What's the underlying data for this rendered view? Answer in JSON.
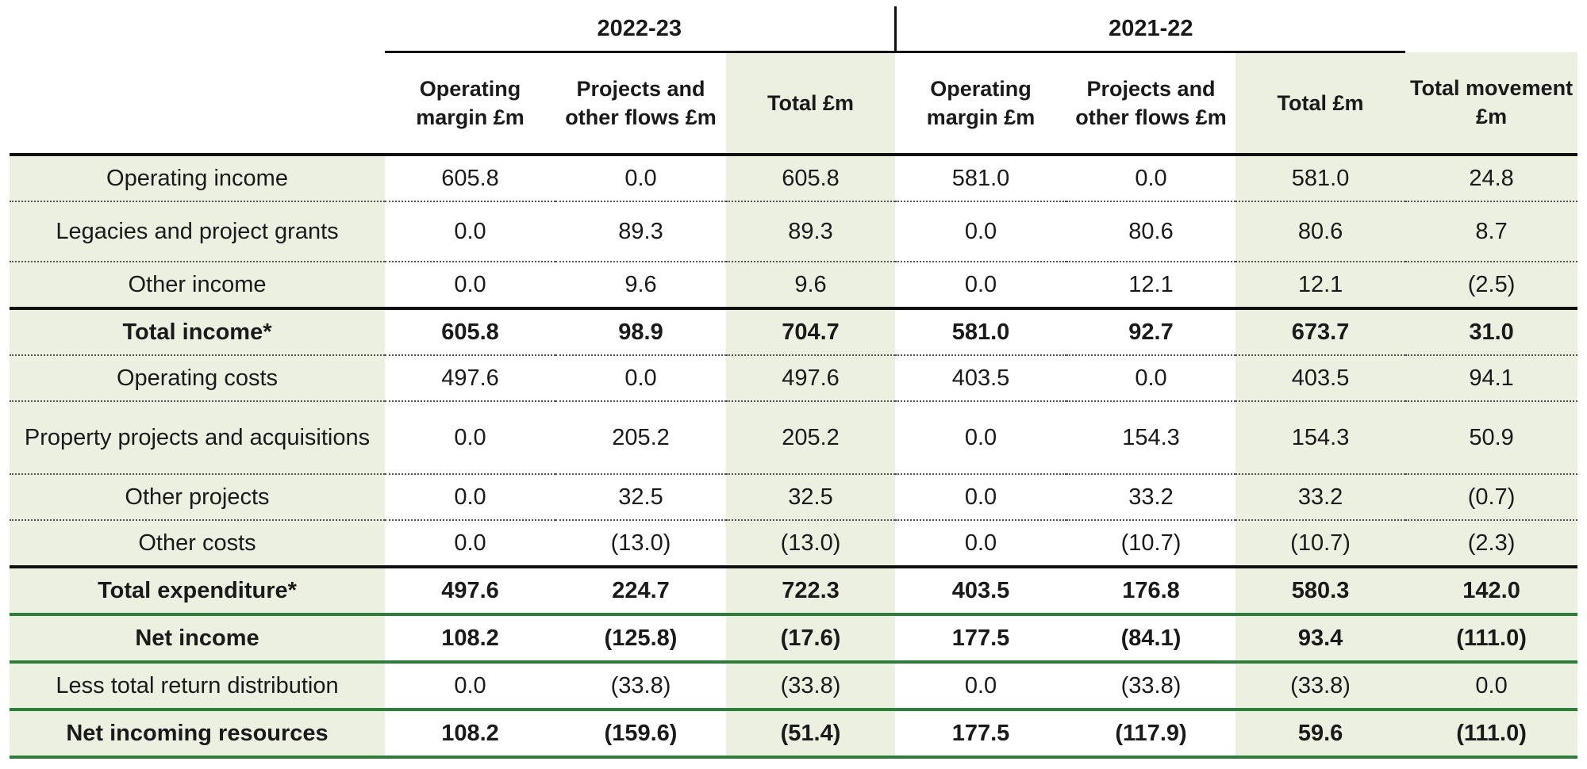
{
  "years": [
    "2022-23",
    "2021-22"
  ],
  "column_headers": [
    "Operating margin £m",
    "Projects and other flows £m",
    "Total £m",
    "Operating margin £m",
    "Projects and other flows £m",
    "Total £m",
    "Total movement £m"
  ],
  "rows": [
    {
      "label": "Operating income",
      "values": [
        "605.8",
        "0.0",
        "605.8",
        "581.0",
        "0.0",
        "581.0",
        "24.8"
      ]
    },
    {
      "label": "Legacies and project grants",
      "values": [
        "0.0",
        "89.3",
        "89.3",
        "0.0",
        "80.6",
        "80.6",
        "8.7"
      ]
    },
    {
      "label": "Other income",
      "values": [
        "0.0",
        "9.6",
        "9.6",
        "0.0",
        "12.1",
        "12.1",
        "(2.5)"
      ]
    },
    {
      "label": "Total income*",
      "values": [
        "605.8",
        "98.9",
        "704.7",
        "581.0",
        "92.7",
        "673.7",
        "31.0"
      ]
    },
    {
      "label": "Operating costs",
      "values": [
        "497.6",
        "0.0",
        "497.6",
        "403.5",
        "0.0",
        "403.5",
        "94.1"
      ]
    },
    {
      "label": "Property projects and acquisitions",
      "values": [
        "0.0",
        "205.2",
        "205.2",
        "0.0",
        "154.3",
        "154.3",
        "50.9"
      ]
    },
    {
      "label": "Other projects",
      "values": [
        "0.0",
        "32.5",
        "32.5",
        "0.0",
        "33.2",
        "33.2",
        "(0.7)"
      ]
    },
    {
      "label": "Other costs",
      "values": [
        "0.0",
        "(13.0)",
        "(13.0)",
        "0.0",
        "(10.7)",
        "(10.7)",
        "(2.3)"
      ]
    },
    {
      "label": "Total expenditure*",
      "values": [
        "497.6",
        "224.7",
        "722.3",
        "403.5",
        "176.8",
        "580.3",
        "142.0"
      ]
    },
    {
      "label": "Net income",
      "values": [
        "108.2",
        "(125.8)",
        "(17.6)",
        "177.5",
        "(84.1)",
        "93.4",
        "(111.0)"
      ]
    },
    {
      "label": "Less total return distribution",
      "values": [
        "0.0",
        "(33.8)",
        "(33.8)",
        "0.0",
        "(33.8)",
        "(33.8)",
        "0.0"
      ]
    },
    {
      "label": "Net incoming resources",
      "values": [
        "108.2",
        "(159.6)",
        "(51.4)",
        "177.5",
        "(117.9)",
        "59.6",
        "(111.0)"
      ]
    }
  ],
  "colors": {
    "shade": "#ecf0e0",
    "rule": "#111111",
    "accent_green": "#2e7d3b"
  }
}
